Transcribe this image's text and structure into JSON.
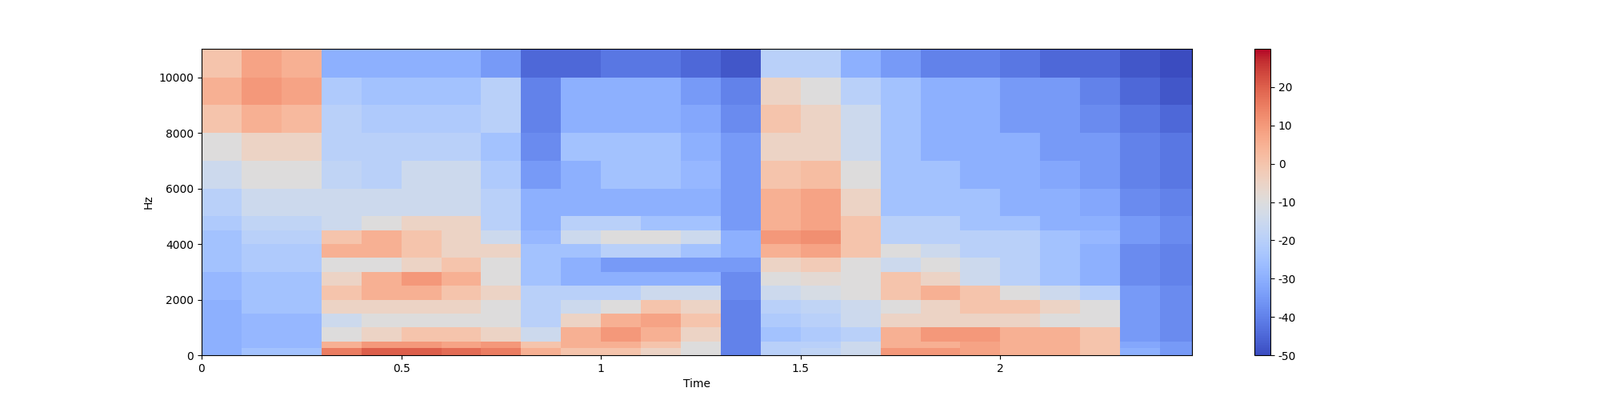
{
  "chart_data": {
    "type": "heatmap",
    "x_label": "Time",
    "y_label": "Hz",
    "color": "coolwarm",
    "xlim": [
      0,
      2.48
    ],
    "ylim": [
      0,
      11025
    ],
    "xticks": [
      0,
      0.5,
      1,
      1.5,
      2
    ],
    "yticks": [
      0,
      2000,
      4000,
      6000,
      8000,
      10000
    ],
    "x_edges": [
      0,
      0.1,
      0.2,
      0.3,
      0.4,
      0.5,
      0.6,
      0.7,
      0.8,
      0.9,
      1.0,
      1.1,
      1.2,
      1.3,
      1.4,
      1.5,
      1.6,
      1.7,
      1.8,
      1.9,
      2.0,
      2.1,
      2.2,
      2.3,
      2.4,
      2.48
    ],
    "y_edges": [
      0,
      250,
      500,
      1000,
      1500,
      2000,
      2500,
      3000,
      3500,
      4000,
      4500,
      5000,
      6000,
      7000,
      8000,
      9000,
      10000,
      11025
    ],
    "cells": [
      [
        -30,
        -30,
        -30,
        -30,
        -30,
        -28,
        -28,
        -25,
        -25,
        -25,
        -22,
        -20,
        -15,
        -10,
        0,
        5,
        0
      ],
      [
        -25,
        -28,
        -28,
        -28,
        -25,
        -25,
        -25,
        -22,
        -22,
        -20,
        -18,
        -15,
        -10,
        -5,
        5,
        10,
        8
      ],
      [
        -25,
        -28,
        -28,
        -28,
        -25,
        -25,
        -25,
        -22,
        -22,
        -20,
        -18,
        -15,
        -10,
        -5,
        3,
        8,
        5
      ],
      [
        15,
        5,
        -10,
        -15,
        -5,
        0,
        -5,
        -10,
        5,
        0,
        -15,
        -15,
        -18,
        -20,
        -20,
        -22,
        -30
      ],
      [
        20,
        10,
        -5,
        -10,
        -5,
        5,
        5,
        -10,
        5,
        5,
        -10,
        -15,
        -20,
        -20,
        -22,
        -25,
        -30
      ],
      [
        20,
        10,
        0,
        -10,
        -5,
        5,
        10,
        -5,
        0,
        0,
        -5,
        -15,
        -15,
        -20,
        -22,
        -25,
        -30
      ],
      [
        18,
        8,
        0,
        -10,
        -5,
        0,
        5,
        0,
        -5,
        -5,
        -5,
        -15,
        -15,
        -20,
        -22,
        -25,
        -30
      ],
      [
        15,
        10,
        -5,
        -10,
        -10,
        -5,
        -10,
        -10,
        -5,
        -15,
        -20,
        -20,
        -22,
        -25,
        -20,
        -20,
        -35
      ],
      [
        5,
        0,
        -15,
        -20,
        -20,
        -20,
        -25,
        -25,
        -25,
        -28,
        -30,
        -30,
        -35,
        -38,
        -40,
        -40,
        -45
      ],
      [
        0,
        5,
        5,
        -5,
        -15,
        -20,
        -30,
        -30,
        -25,
        -15,
        -20,
        -30,
        -30,
        -25,
        -30,
        -30,
        -45
      ],
      [
        0,
        5,
        10,
        5,
        -10,
        -20,
        -30,
        -35,
        -20,
        -10,
        -20,
        -30,
        -25,
        -25,
        -30,
        -30,
        -42
      ],
      [
        -5,
        0,
        5,
        8,
        0,
        -15,
        -30,
        -35,
        -20,
        -10,
        -25,
        -30,
        -25,
        -25,
        -30,
        -30,
        -42
      ],
      [
        -10,
        -10,
        -5,
        0,
        -5,
        -15,
        -30,
        -35,
        -25,
        -15,
        -25,
        -30,
        -28,
        -30,
        -32,
        -35,
        -45
      ],
      [
        -40,
        -40,
        -40,
        -40,
        -40,
        -38,
        -38,
        -35,
        -30,
        -30,
        -35,
        -35,
        -35,
        -35,
        -38,
        -40,
        -48
      ],
      [
        -20,
        -20,
        -25,
        -22,
        -20,
        -15,
        -10,
        -5,
        5,
        10,
        5,
        5,
        0,
        -5,
        0,
        -5,
        -20
      ],
      [
        -18,
        -20,
        -22,
        -20,
        -18,
        -12,
        -8,
        -2,
        8,
        12,
        8,
        8,
        2,
        -5,
        -5,
        -10,
        -20
      ],
      [
        -15,
        -15,
        -20,
        -15,
        -15,
        -10,
        -10,
        -10,
        0,
        0,
        0,
        -5,
        -10,
        -15,
        -15,
        -20,
        -30
      ],
      [
        10,
        5,
        5,
        -5,
        -10,
        0,
        0,
        -15,
        -10,
        -20,
        -20,
        -25,
        -25,
        -25,
        -25,
        -25,
        -35
      ],
      [
        10,
        5,
        10,
        -5,
        -5,
        5,
        -5,
        -10,
        -15,
        -20,
        -20,
        -25,
        -25,
        -30,
        -30,
        -30,
        -40
      ],
      [
        8,
        8,
        10,
        -5,
        0,
        0,
        -15,
        -15,
        -20,
        -20,
        -25,
        -25,
        -30,
        -30,
        -30,
        -30,
        -40
      ],
      [
        5,
        5,
        5,
        -5,
        0,
        -10,
        -20,
        -20,
        -20,
        -20,
        -25,
        -30,
        -30,
        -30,
        -35,
        -35,
        -42
      ],
      [
        5,
        5,
        5,
        -10,
        -5,
        -15,
        -25,
        -25,
        -25,
        -25,
        -30,
        -30,
        -32,
        -35,
        -35,
        -35,
        -45
      ],
      [
        0,
        0,
        0,
        -10,
        -10,
        -20,
        -30,
        -30,
        -30,
        -28,
        -30,
        -32,
        -35,
        -35,
        -38,
        -40,
        -45
      ],
      [
        -30,
        -32,
        -35,
        -35,
        -35,
        -35,
        -38,
        -38,
        -38,
        -35,
        -35,
        -38,
        -40,
        -40,
        -42,
        -45,
        -48
      ],
      [
        -35,
        -35,
        -38,
        -38,
        -38,
        -38,
        -40,
        -40,
        -40,
        -38,
        -38,
        -40,
        -42,
        -42,
        -45,
        -48,
        -50
      ]
    ],
    "colorbar": {
      "range": [
        -50,
        30
      ],
      "ticks": [
        -50,
        -40,
        -30,
        -20,
        -10,
        0,
        10,
        20
      ]
    }
  }
}
